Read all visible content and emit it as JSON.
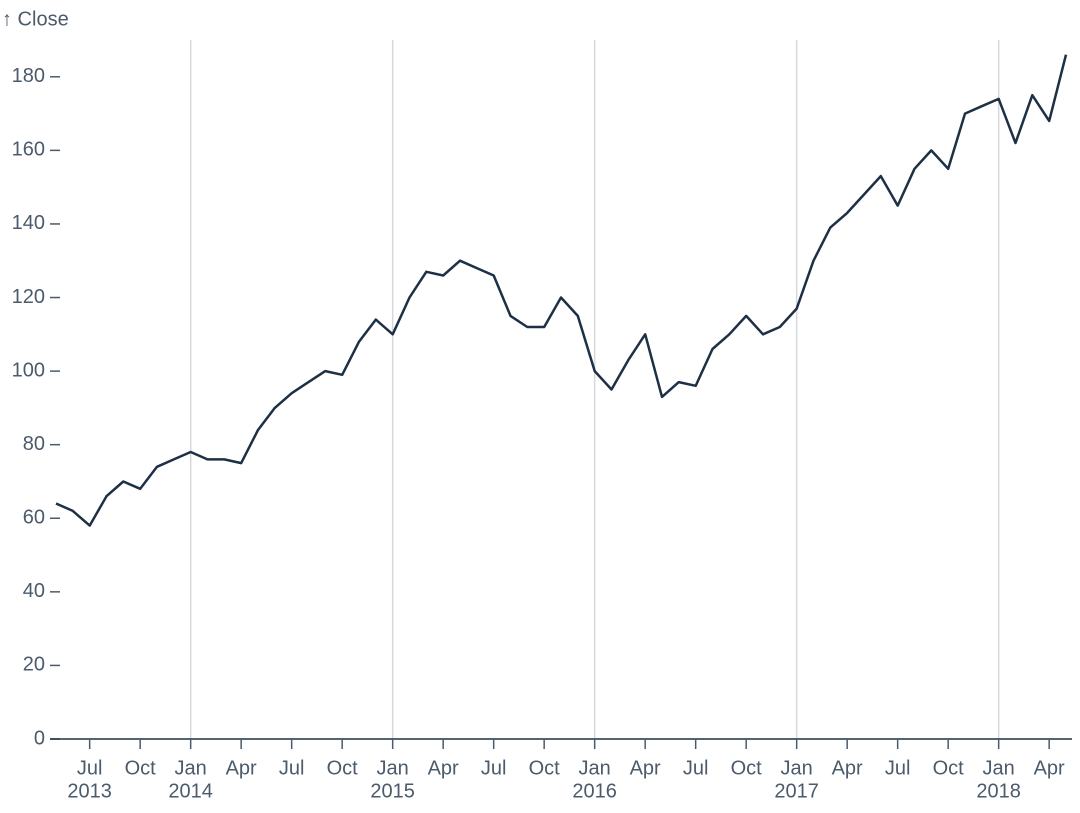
{
  "chart_data": {
    "type": "line",
    "y_label": "↑ Close",
    "x": [
      "2013-05",
      "2013-06",
      "2013-07",
      "2013-08",
      "2013-09",
      "2013-10",
      "2013-11",
      "2013-12",
      "2014-01",
      "2014-02",
      "2014-03",
      "2014-04",
      "2014-05",
      "2014-06",
      "2014-07",
      "2014-08",
      "2014-09",
      "2014-10",
      "2014-11",
      "2014-12",
      "2015-01",
      "2015-02",
      "2015-03",
      "2015-04",
      "2015-05",
      "2015-06",
      "2015-07",
      "2015-08",
      "2015-09",
      "2015-10",
      "2015-11",
      "2015-12",
      "2016-01",
      "2016-02",
      "2016-03",
      "2016-04",
      "2016-05",
      "2016-06",
      "2016-07",
      "2016-08",
      "2016-09",
      "2016-10",
      "2016-11",
      "2016-12",
      "2017-01",
      "2017-02",
      "2017-03",
      "2017-04",
      "2017-05",
      "2017-06",
      "2017-07",
      "2017-08",
      "2017-09",
      "2017-10",
      "2017-11",
      "2017-12",
      "2018-01",
      "2018-02",
      "2018-03",
      "2018-04",
      "2018-05"
    ],
    "series": [
      {
        "name": "Close",
        "color": "#1d3045",
        "values": [
          64,
          62,
          58,
          66,
          70,
          68,
          74,
          76,
          78,
          76,
          76,
          75,
          84,
          90,
          94,
          97,
          100,
          99,
          108,
          114,
          110,
          120,
          127,
          126,
          130,
          128,
          126,
          115,
          112,
          112,
          120,
          115,
          100,
          95,
          103,
          110,
          93,
          97,
          96,
          106,
          110,
          115,
          110,
          112,
          117,
          130,
          139,
          143,
          148,
          153,
          145,
          155,
          160,
          155,
          170,
          172,
          174,
          162,
          175,
          168,
          186
        ]
      }
    ],
    "xlim": [
      "2013-05",
      "2018-05"
    ],
    "xticks": [
      {
        "value": "2013-07",
        "label": "Jul"
      },
      {
        "value": "2013-10",
        "label": "Oct"
      },
      {
        "value": "2014-01",
        "label": "Jan"
      },
      {
        "value": "2014-04",
        "label": "Apr"
      },
      {
        "value": "2014-07",
        "label": "Jul"
      },
      {
        "value": "2014-10",
        "label": "Oct"
      },
      {
        "value": "2015-01",
        "label": "Jan"
      },
      {
        "value": "2015-04",
        "label": "Apr"
      },
      {
        "value": "2015-07",
        "label": "Jul"
      },
      {
        "value": "2015-10",
        "label": "Oct"
      },
      {
        "value": "2016-01",
        "label": "Jan"
      },
      {
        "value": "2016-04",
        "label": "Apr"
      },
      {
        "value": "2016-07",
        "label": "Jul"
      },
      {
        "value": "2016-10",
        "label": "Oct"
      },
      {
        "value": "2017-01",
        "label": "Jan"
      },
      {
        "value": "2017-04",
        "label": "Apr"
      },
      {
        "value": "2017-07",
        "label": "Jul"
      },
      {
        "value": "2017-10",
        "label": "Oct"
      },
      {
        "value": "2018-01",
        "label": "Jan"
      },
      {
        "value": "2018-04",
        "label": "Apr"
      }
    ],
    "xtick_years": [
      {
        "value": "2013-07",
        "label": "2013"
      },
      {
        "value": "2014-01",
        "label": "2014"
      },
      {
        "value": "2015-01",
        "label": "2015"
      },
      {
        "value": "2016-01",
        "label": "2016"
      },
      {
        "value": "2017-01",
        "label": "2017"
      },
      {
        "value": "2018-01",
        "label": "2018"
      }
    ],
    "xgrid": [
      "2014-01",
      "2015-01",
      "2016-01",
      "2017-01",
      "2018-01"
    ],
    "ylim": [
      0,
      190
    ],
    "yticks": [
      0,
      20,
      40,
      60,
      80,
      100,
      120,
      140,
      160,
      180
    ]
  }
}
